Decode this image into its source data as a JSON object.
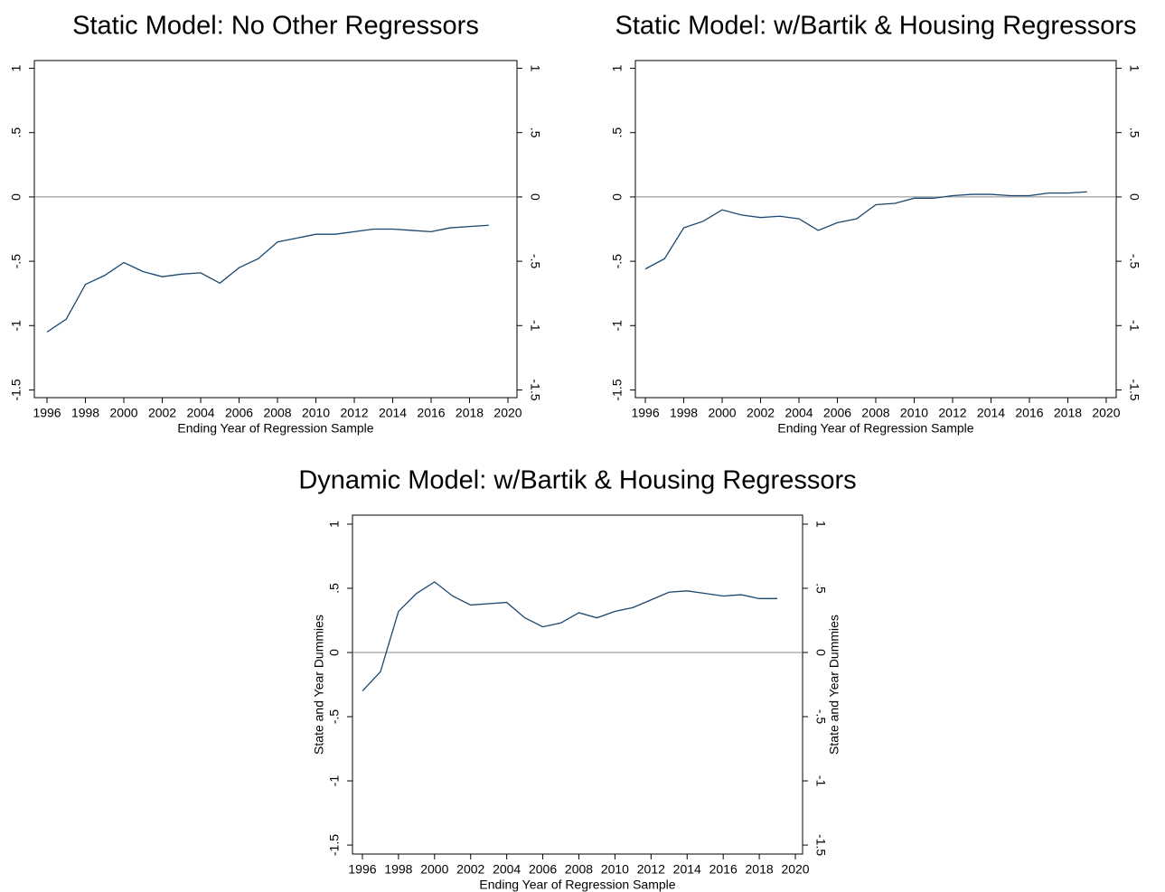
{
  "chart_data": [
    {
      "type": "line",
      "title": "Static Model: No Other Regressors",
      "xlabel": "Ending Year of Regression Sample",
      "x": [
        1996,
        1997,
        1998,
        1999,
        2000,
        2001,
        2002,
        2003,
        2004,
        2005,
        2006,
        2007,
        2008,
        2009,
        2010,
        2011,
        2012,
        2013,
        2014,
        2015,
        2016,
        2017,
        2018,
        2019
      ],
      "series": [
        {
          "color": "#1a476f",
          "values": [
            -1.05,
            -0.95,
            -0.68,
            -0.61,
            -0.51,
            -0.58,
            -0.62,
            -0.6,
            -0.59,
            -0.67,
            -0.55,
            -0.48,
            -0.35,
            -0.32,
            -0.29,
            -0.29,
            -0.27,
            -0.25,
            -0.25,
            -0.26,
            -0.27,
            -0.24,
            -0.23,
            -0.22
          ]
        }
      ],
      "xlim": [
        1995.34,
        2020.47
      ],
      "xticks": [
        1996,
        1998,
        2000,
        2002,
        2004,
        2006,
        2008,
        2010,
        2012,
        2014,
        2016,
        2018,
        2020
      ],
      "ylim": [
        -1.56,
        1.06
      ],
      "yticks": [
        {
          "value": -1.5,
          "label": "-1.5"
        },
        -1,
        {
          "value": -0.5,
          "label": "-.5"
        },
        0,
        {
          "value": 0.5,
          "label": ".5"
        },
        1
      ],
      "hline": 0
    },
    {
      "type": "line",
      "title": "Static Model: w/Bartik & Housing Regressors",
      "xlabel": "Ending Year of Regression Sample",
      "x": [
        1996,
        1997,
        1998,
        1999,
        2000,
        2001,
        2002,
        2003,
        2004,
        2005,
        2006,
        2007,
        2008,
        2009,
        2010,
        2011,
        2012,
        2013,
        2014,
        2015,
        2016,
        2017,
        2018,
        2019
      ],
      "series": [
        {
          "color": "#1a476f",
          "values": [
            -0.56,
            -0.48,
            -0.24,
            -0.19,
            -0.1,
            -0.14,
            -0.16,
            -0.15,
            -0.17,
            -0.26,
            -0.2,
            -0.17,
            -0.06,
            -0.05,
            -0.01,
            -0.01,
            0.01,
            0.02,
            0.02,
            0.01,
            0.01,
            0.03,
            0.03,
            0.04
          ]
        }
      ],
      "xlim": [
        1995.48,
        2020.52
      ],
      "xticks": [
        1996,
        1998,
        2000,
        2002,
        2004,
        2006,
        2008,
        2010,
        2012,
        2014,
        2016,
        2018,
        2020
      ],
      "ylim": [
        -1.56,
        1.06
      ],
      "yticks": [
        {
          "value": -1.5,
          "label": "-1.5"
        },
        -1,
        {
          "value": -0.5,
          "label": "-.5"
        },
        0,
        {
          "value": 0.5,
          "label": ".5"
        },
        1
      ],
      "hline": 0
    },
    {
      "type": "line",
      "title": "Dynamic Model: w/Bartik & Housing Regressors",
      "xlabel": "Ending Year of Regression Sample",
      "ylabel": "State and Year Dummies",
      "y2label": "State and Year Dummies",
      "x": [
        1996,
        1997,
        1998,
        1999,
        2000,
        2001,
        2002,
        2003,
        2004,
        2005,
        2006,
        2007,
        2008,
        2009,
        2010,
        2011,
        2012,
        2013,
        2014,
        2015,
        2016,
        2017,
        2018,
        2019
      ],
      "series": [
        {
          "color": "#1a476f",
          "values": [
            -0.3,
            -0.15,
            0.32,
            0.46,
            0.55,
            0.44,
            0.37,
            0.38,
            0.39,
            0.27,
            0.2,
            0.23,
            0.31,
            0.27,
            0.32,
            0.35,
            0.41,
            0.47,
            0.48,
            0.46,
            0.44,
            0.45,
            0.42,
            0.42
          ]
        }
      ],
      "xlim": [
        1995.45,
        2020.4
      ],
      "xticks": [
        1996,
        1998,
        2000,
        2002,
        2004,
        2006,
        2008,
        2010,
        2012,
        2014,
        2016,
        2018,
        2020
      ],
      "ylim": [
        -1.57,
        1.07
      ],
      "yticks": [
        {
          "value": -1.5,
          "label": "-1.5"
        },
        -1,
        {
          "value": -0.5,
          "label": "-.5"
        },
        0,
        {
          "value": 0.5,
          "label": ".5"
        },
        1
      ],
      "hline": 0
    }
  ]
}
